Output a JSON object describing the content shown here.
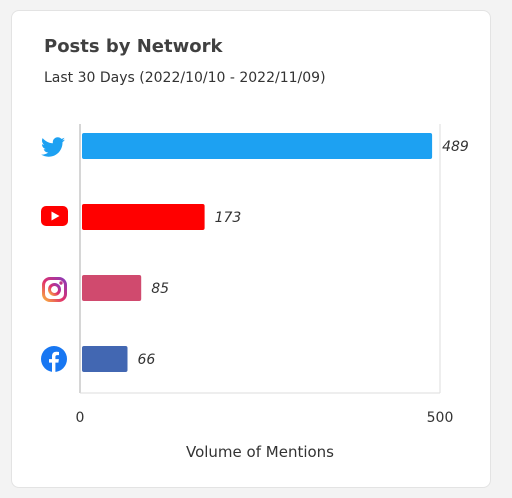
{
  "card": {
    "title": "Posts by Network",
    "subtitle": "Last 30 Days (2022/10/10 - 2022/11/09)"
  },
  "chart_data": {
    "type": "bar",
    "orientation": "horizontal",
    "title": "Posts by Network",
    "subtitle": "Last 30 Days (2022/10/10 - 2022/11/09)",
    "xlabel": "Volume of Mentions",
    "ylabel": "",
    "xlim": [
      0,
      500
    ],
    "x_ticks": [
      "0",
      "500"
    ],
    "grid": false,
    "legend": "none",
    "categories": [
      {
        "icon": "twitter-icon",
        "value": 489,
        "label": "489",
        "color": "#1da1f2"
      },
      {
        "icon": "youtube-icon",
        "value": 173,
        "label": "173",
        "color": "#ff0000"
      },
      {
        "icon": "instagram-icon",
        "value": 85,
        "label": "85",
        "color": "#d04a6e"
      },
      {
        "icon": "facebook-icon",
        "value": 66,
        "label": "66",
        "color": "#4267b2"
      }
    ]
  }
}
